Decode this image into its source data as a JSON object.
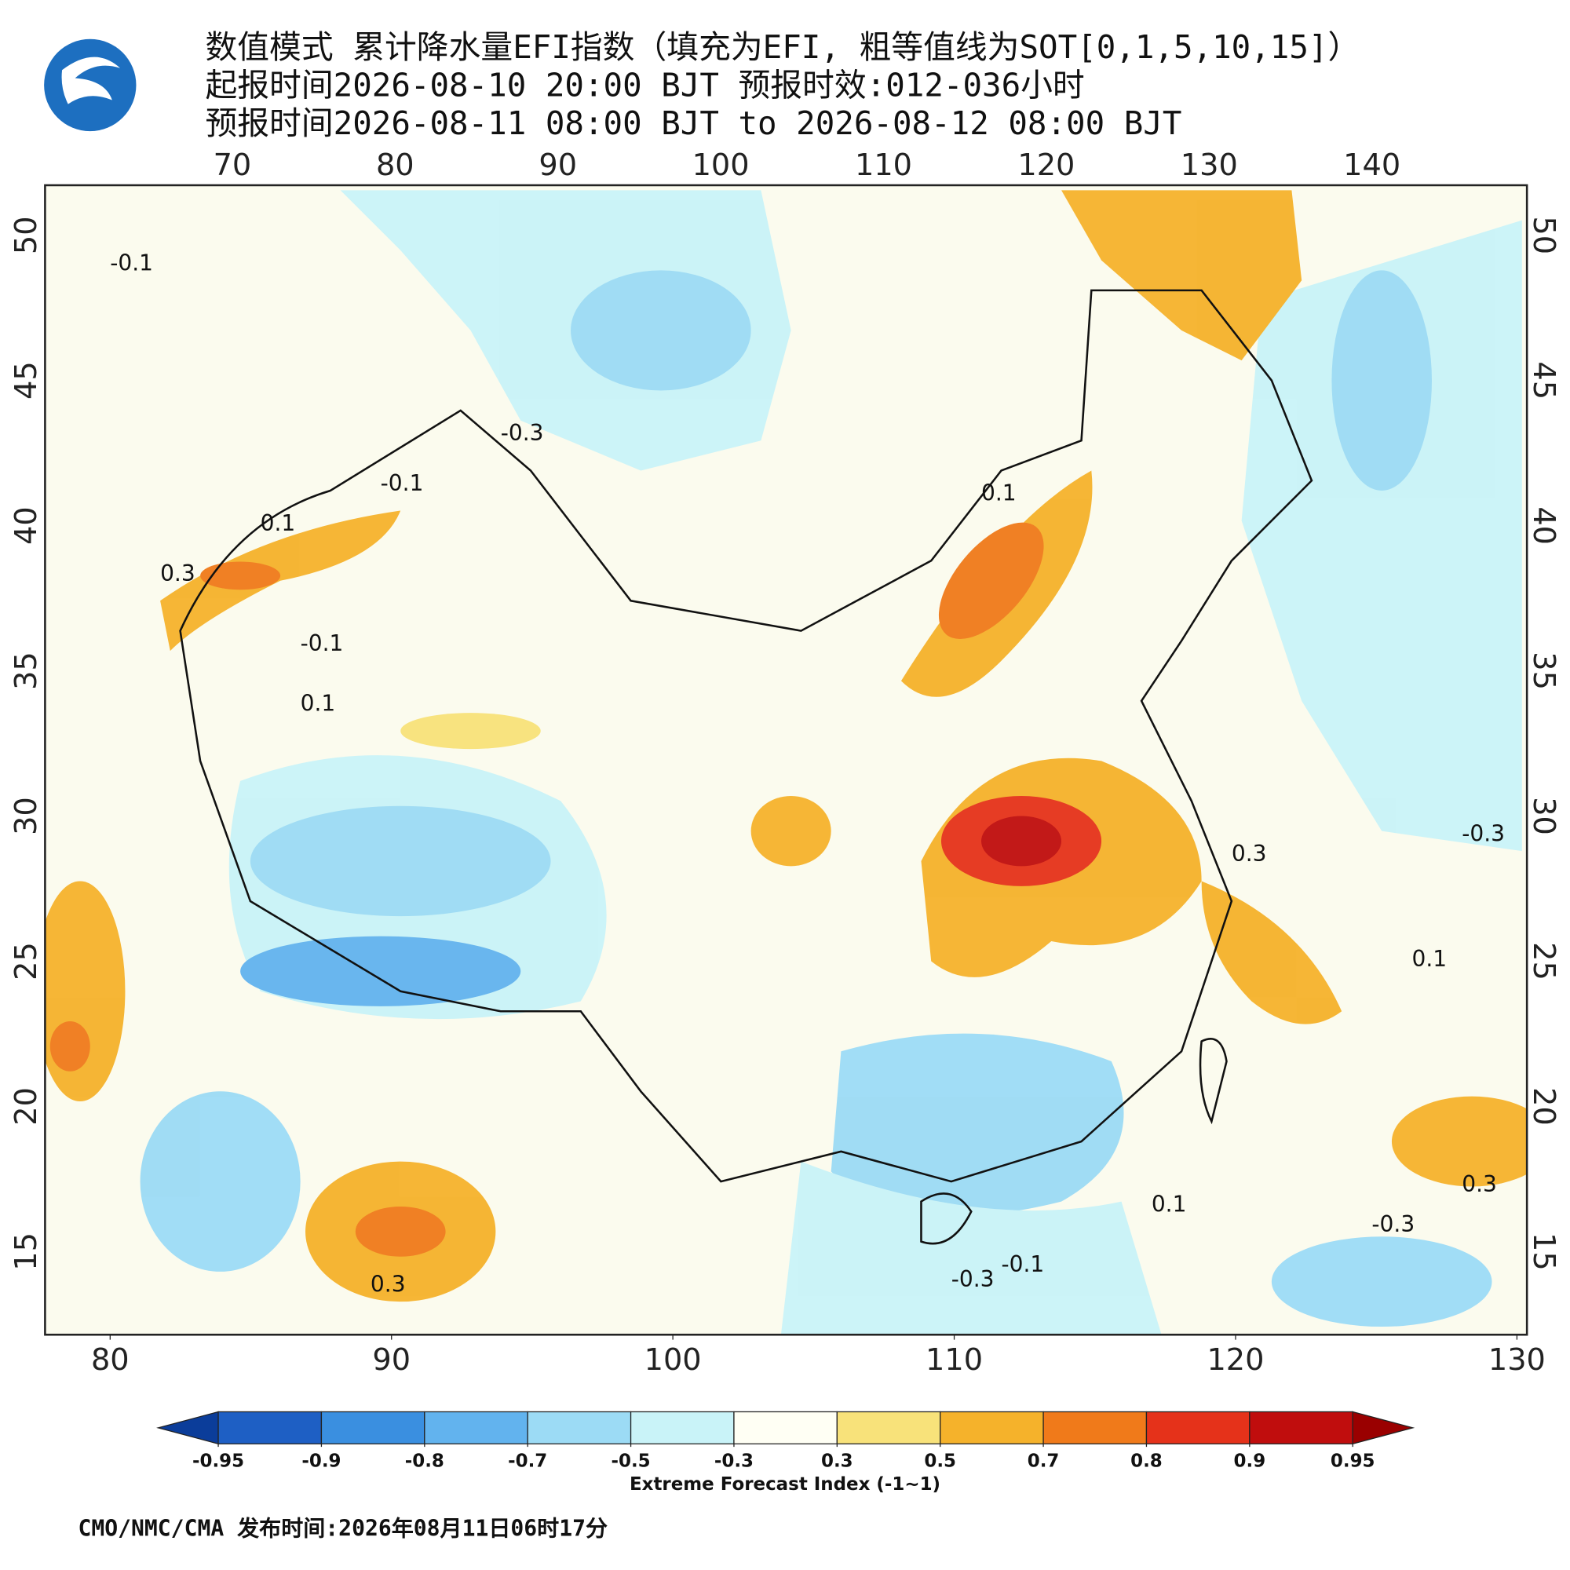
{
  "header": {
    "title_lines": [
      "数值模式 累计降水量EFI指数（填充为EFI, 粗等值线为SOT[0,1,5,10,15]）",
      "起报时间2026-08-10 20:00 BJT 预报时效:012-036小时",
      "预报时间2026-08-11 08:00 BJT to 2026-08-12 08:00 BJT"
    ]
  },
  "map": {
    "lon_top": [
      70,
      80,
      90,
      100,
      110,
      120,
      130,
      140
    ],
    "lon_bottom": [
      80,
      90,
      100,
      110,
      120,
      130
    ],
    "lat_left": [
      15,
      20,
      25,
      30,
      35,
      40,
      45,
      50
    ],
    "lat_right": [
      15,
      20,
      25,
      30,
      35,
      40,
      45,
      50
    ],
    "contour_labels": [
      "-0.1",
      "-0.3",
      "-0.1",
      "0.1",
      "0.3",
      "-0.1",
      "0.1",
      "0.1",
      "0.3",
      "-0.3",
      "0.1",
      "-0.3",
      "0.3",
      "0.1",
      "-0.1",
      "0.3",
      "-0.3"
    ]
  },
  "colorbar": {
    "labels": [
      -0.95,
      -0.9,
      -0.8,
      -0.7,
      -0.5,
      -0.3,
      0.3,
      0.5,
      0.7,
      0.8,
      0.9,
      0.95
    ],
    "colors": [
      "#0b3d9a",
      "#1e5fc4",
      "#3a8fe0",
      "#62b3ee",
      "#9cdbf5",
      "#c9f3f8",
      "#fffff4",
      "#f8e27a",
      "#f5b22b",
      "#f07a1a",
      "#e5321a",
      "#c00d0d",
      "#9a0000"
    ],
    "title": "Extreme Forecast Index (-1~1)"
  },
  "footer": {
    "text": "CMO/NMC/CMA 发布时间:2026年08月11日06时17分"
  }
}
